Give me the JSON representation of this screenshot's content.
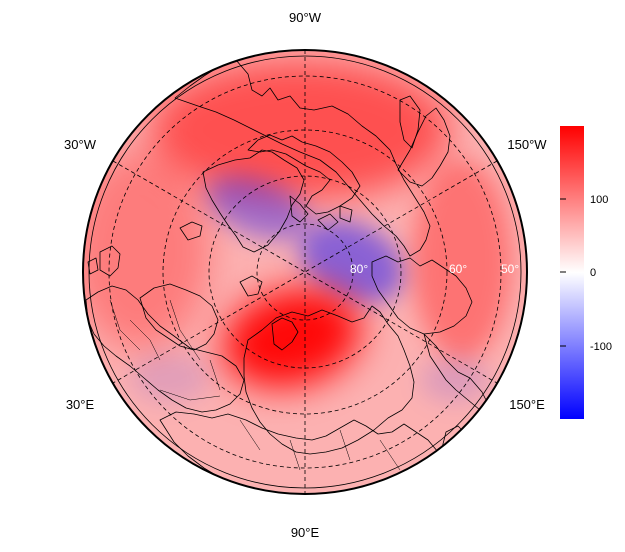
{
  "map": {
    "projection": "north-polar-stereographic",
    "longitude_labels": {
      "top": "90°W",
      "upper_left": "30°W",
      "upper_right": "150°W",
      "lower_left": "30°E",
      "lower_right": "150°E",
      "bottom": "90°E"
    },
    "latitude_labels": [
      "80°",
      "60°",
      "50°"
    ],
    "colorbar": {
      "colors": {
        "min": "#0000ff",
        "mid": "#ffffff",
        "max": "#ff0000"
      },
      "range": [
        -200,
        200
      ],
      "tick_labels": [
        "100",
        "0",
        "-100"
      ]
    },
    "anomalies": [
      {
        "region": "north-pacific-aleutian",
        "sign": "positive",
        "level": 0.55
      },
      {
        "region": "canadian-arctic-baffin",
        "sign": "negative",
        "level": 0.35
      },
      {
        "region": "arctic-ocean-beaufort",
        "sign": "negative",
        "level": 0.45
      },
      {
        "region": "barents-kara-western-siberia",
        "sign": "positive",
        "level": 0.95
      },
      {
        "region": "north-atlantic",
        "sign": "positive",
        "level": 0.3
      },
      {
        "region": "east-pacific",
        "sign": "positive",
        "level": 0.35
      },
      {
        "region": "central-asia",
        "sign": "negative",
        "level": 0.1
      },
      {
        "region": "alaska-bering",
        "sign": "negative",
        "level": 0.12
      }
    ]
  }
}
